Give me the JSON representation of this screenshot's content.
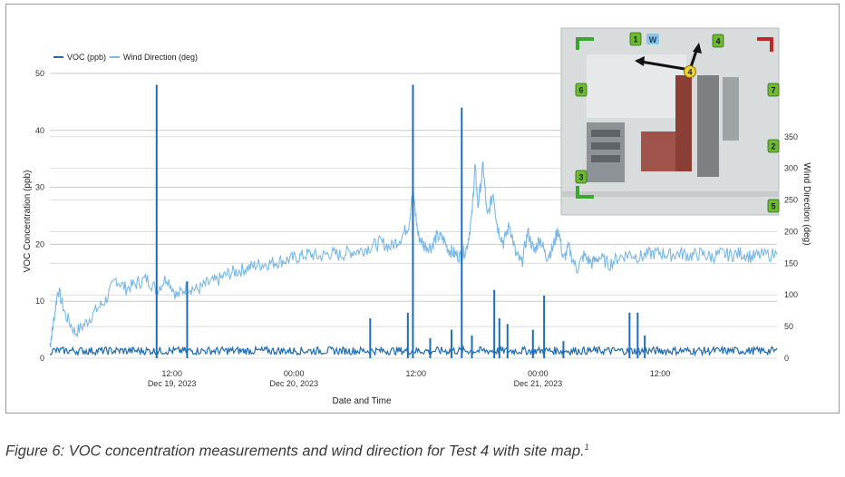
{
  "chart_data": {
    "type": "line",
    "title": "",
    "xlabel": "Date and Time",
    "ylabel": "VOC Concentration (ppb)",
    "y2label": "Wind Direction (deg)",
    "ylim": [
      0,
      50
    ],
    "y2lim": [
      0,
      450
    ],
    "y_ticks": [
      "0",
      "10",
      "20",
      "30",
      "40",
      "50"
    ],
    "y2_ticks": [
      "0",
      "50",
      "100",
      "150",
      "200",
      "250",
      "300",
      "350"
    ],
    "y2_tick_values": [
      0,
      50,
      100,
      150,
      200,
      250,
      300,
      350
    ],
    "x_ticks": [
      {
        "hours": 12,
        "line1": "12:00",
        "line2": "Dec 19, 2023"
      },
      {
        "hours": 24,
        "line1": "00:00",
        "line2": "Dec 20, 2023"
      },
      {
        "hours": 36,
        "line1": "12:00",
        "line2": ""
      },
      {
        "hours": 48,
        "line1": "00:00",
        "line2": "Dec 21, 2023"
      },
      {
        "hours": 60,
        "line1": "12:00",
        "line2": ""
      }
    ],
    "x_range_hours": [
      0,
      71.5
    ],
    "grid": true,
    "legend_position": "top-left",
    "series": [
      {
        "name": "VOC (ppb)",
        "axis": "left",
        "color": "#1f6db5",
        "baseline": 0.6,
        "points": [
          {
            "x": 10.5,
            "y": 48
          },
          {
            "x": 13.5,
            "y": 13.5
          },
          {
            "x": 31.5,
            "y": 7
          },
          {
            "x": 35.2,
            "y": 8
          },
          {
            "x": 35.7,
            "y": 48
          },
          {
            "x": 37.4,
            "y": 3.5
          },
          {
            "x": 39.5,
            "y": 5
          },
          {
            "x": 40.5,
            "y": 44
          },
          {
            "x": 41.5,
            "y": 4
          },
          {
            "x": 43.7,
            "y": 12
          },
          {
            "x": 44.2,
            "y": 7
          },
          {
            "x": 45.0,
            "y": 6
          },
          {
            "x": 47.5,
            "y": 5
          },
          {
            "x": 48.6,
            "y": 11
          },
          {
            "x": 50.5,
            "y": 3
          },
          {
            "x": 57.0,
            "y": 8
          },
          {
            "x": 57.8,
            "y": 8
          },
          {
            "x": 58.5,
            "y": 4
          }
        ]
      },
      {
        "name": "Wind Direction (deg)",
        "axis": "right",
        "color": "#7ab9e6",
        "points": [
          {
            "x": 0.0,
            "y": 20
          },
          {
            "x": 0.3,
            "y": 50
          },
          {
            "x": 0.8,
            "y": 110
          },
          {
            "x": 1.5,
            "y": 70
          },
          {
            "x": 2.5,
            "y": 40
          },
          {
            "x": 3.5,
            "y": 55
          },
          {
            "x": 4.5,
            "y": 75
          },
          {
            "x": 5.5,
            "y": 92
          },
          {
            "x": 6.5,
            "y": 125
          },
          {
            "x": 7.5,
            "y": 110
          },
          {
            "x": 8.5,
            "y": 118
          },
          {
            "x": 9.5,
            "y": 126
          },
          {
            "x": 10.5,
            "y": 108
          },
          {
            "x": 11.5,
            "y": 128
          },
          {
            "x": 12.5,
            "y": 98
          },
          {
            "x": 13.5,
            "y": 113
          },
          {
            "x": 14.5,
            "y": 108
          },
          {
            "x": 15.5,
            "y": 118
          },
          {
            "x": 16.5,
            "y": 123
          },
          {
            "x": 17.5,
            "y": 133
          },
          {
            "x": 18.5,
            "y": 138
          },
          {
            "x": 19.5,
            "y": 143
          },
          {
            "x": 20.5,
            "y": 148
          },
          {
            "x": 21.5,
            "y": 150
          },
          {
            "x": 22.5,
            "y": 153
          },
          {
            "x": 23.5,
            "y": 156
          },
          {
            "x": 24.5,
            "y": 160
          },
          {
            "x": 25.5,
            "y": 165
          },
          {
            "x": 26.5,
            "y": 160
          },
          {
            "x": 27.5,
            "y": 166
          },
          {
            "x": 28.5,
            "y": 163
          },
          {
            "x": 29.5,
            "y": 168
          },
          {
            "x": 30.5,
            "y": 170
          },
          {
            "x": 31.5,
            "y": 176
          },
          {
            "x": 32.5,
            "y": 183
          },
          {
            "x": 33.5,
            "y": 176
          },
          {
            "x": 34.5,
            "y": 190
          },
          {
            "x": 35.3,
            "y": 212
          },
          {
            "x": 35.7,
            "y": 265
          },
          {
            "x": 36.2,
            "y": 195
          },
          {
            "x": 36.8,
            "y": 178
          },
          {
            "x": 37.5,
            "y": 176
          },
          {
            "x": 38.0,
            "y": 192
          },
          {
            "x": 38.6,
            "y": 190
          },
          {
            "x": 39.2,
            "y": 172
          },
          {
            "x": 39.8,
            "y": 165
          },
          {
            "x": 40.4,
            "y": 160
          },
          {
            "x": 41.0,
            "y": 175
          },
          {
            "x": 41.5,
            "y": 225
          },
          {
            "x": 41.8,
            "y": 305
          },
          {
            "x": 42.1,
            "y": 240
          },
          {
            "x": 42.6,
            "y": 305
          },
          {
            "x": 43.0,
            "y": 222
          },
          {
            "x": 43.6,
            "y": 262
          },
          {
            "x": 44.0,
            "y": 208
          },
          {
            "x": 44.6,
            "y": 182
          },
          {
            "x": 45.2,
            "y": 212
          },
          {
            "x": 45.8,
            "y": 165
          },
          {
            "x": 46.4,
            "y": 150
          },
          {
            "x": 47.0,
            "y": 200
          },
          {
            "x": 47.6,
            "y": 168
          },
          {
            "x": 48.2,
            "y": 190
          },
          {
            "x": 48.8,
            "y": 160
          },
          {
            "x": 49.4,
            "y": 172
          },
          {
            "x": 50.0,
            "y": 205
          },
          {
            "x": 50.5,
            "y": 155
          },
          {
            "x": 51.0,
            "y": 175
          },
          {
            "x": 51.8,
            "y": 140
          },
          {
            "x": 52.5,
            "y": 162
          },
          {
            "x": 53.3,
            "y": 150
          },
          {
            "x": 54.0,
            "y": 160
          },
          {
            "x": 55.0,
            "y": 148
          },
          {
            "x": 56.0,
            "y": 160
          },
          {
            "x": 57.0,
            "y": 165
          },
          {
            "x": 58.0,
            "y": 160
          },
          {
            "x": 59.0,
            "y": 165
          },
          {
            "x": 60.0,
            "y": 167
          },
          {
            "x": 61.0,
            "y": 163
          },
          {
            "x": 62.0,
            "y": 166
          },
          {
            "x": 63.0,
            "y": 162
          },
          {
            "x": 64.0,
            "y": 165
          },
          {
            "x": 65.0,
            "y": 160
          },
          {
            "x": 66.0,
            "y": 165
          },
          {
            "x": 67.0,
            "y": 163
          },
          {
            "x": 68.0,
            "y": 166
          },
          {
            "x": 69.0,
            "y": 160
          },
          {
            "x": 70.0,
            "y": 163
          },
          {
            "x": 71.5,
            "y": 164
          }
        ]
      }
    ]
  },
  "site_map": {
    "markers": [
      "1",
      "2",
      "3",
      "4",
      "5",
      "6",
      "7"
    ],
    "center_marker": "4",
    "wind_label": "W",
    "colors": {
      "ground": "#d9dcdd",
      "marker_fill": "#6cbb2e",
      "center_marker_fill": "#f2d22a",
      "corner_green": "#3aa531",
      "corner_red": "#c02828"
    }
  },
  "caption": {
    "text": "Figure 6: VOC concentration measurements and wind direction for Test 4 with site map.",
    "sup": "1"
  }
}
